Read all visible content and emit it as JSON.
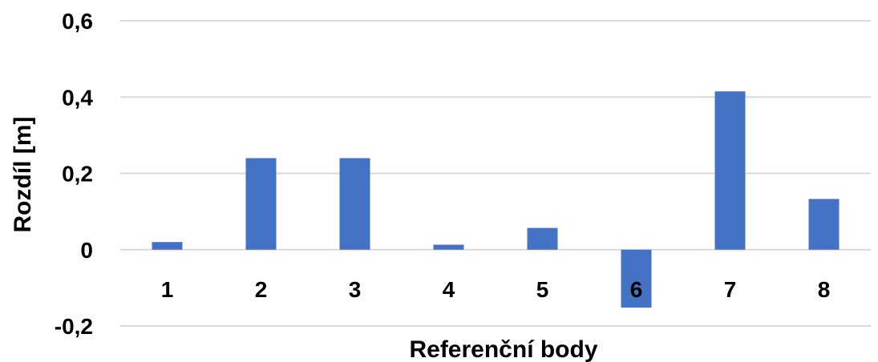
{
  "chart_data": {
    "type": "bar",
    "title": "",
    "xlabel": "Referenční body",
    "ylabel": "Rozdíl [m]",
    "categories": [
      "1",
      "2",
      "3",
      "4",
      "5",
      "6",
      "7",
      "8"
    ],
    "values": [
      0.02,
      0.24,
      0.24,
      0.013,
      0.057,
      -0.152,
      0.415,
      0.133
    ],
    "ylim": [
      -0.2,
      0.6
    ],
    "yticks": [
      "-0,2",
      "0",
      "0,2",
      "0,4",
      "0,6"
    ],
    "grid": true,
    "legend": "none",
    "bar_color": "#4472C4",
    "grid_color": "#D9D9D9"
  }
}
